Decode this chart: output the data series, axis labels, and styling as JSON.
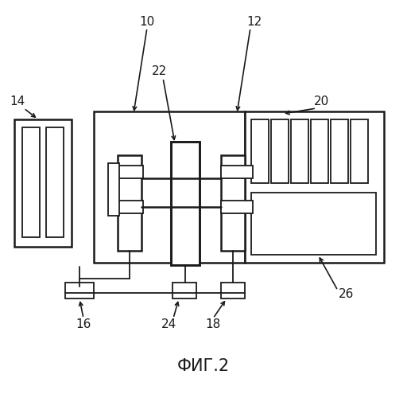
{
  "bg_color": "#ffffff",
  "line_color": "#1a1a1a",
  "fig_label": "ФИГ.2",
  "lw_main": 1.8,
  "lw_thin": 1.3
}
